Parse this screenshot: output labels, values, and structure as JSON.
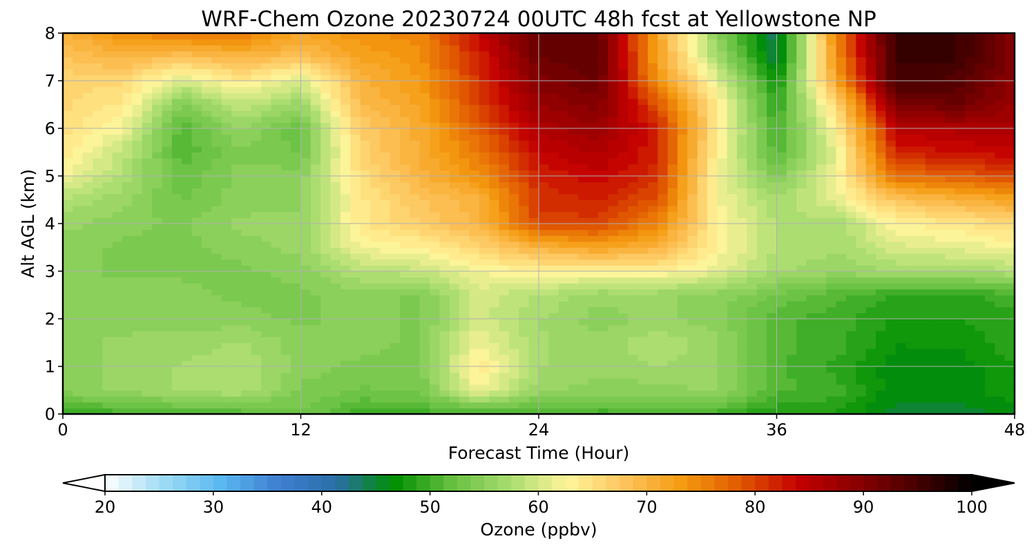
{
  "chart_data": {
    "type": "heatmap",
    "title": "WRF-Chem Ozone  20230724 00UTC 48h fcst at Yellowstone NP",
    "xlabel": "Forecast Time (Hour)",
    "ylabel": "Alt AGL (km)",
    "xlim": [
      0,
      48
    ],
    "ylim": [
      0,
      8
    ],
    "xticks": [
      "0",
      "12",
      "24",
      "36",
      "48"
    ],
    "yticks": [
      "0",
      "1",
      "2",
      "3",
      "4",
      "5",
      "6",
      "7",
      "8"
    ],
    "grid": true,
    "colorbar": {
      "label": "Ozone  (ppbv)",
      "range": [
        20,
        100
      ],
      "ticks": [
        "20",
        "30",
        "40",
        "50",
        "60",
        "70",
        "80",
        "90",
        "100"
      ],
      "extend": "both",
      "colors": [
        "#ffffff",
        "#9fdcf5",
        "#5ab8f0",
        "#3f7fd1",
        "#2a6fa8",
        "#008f00",
        "#66c040",
        "#a8dc70",
        "#fff59a",
        "#fdc45c",
        "#f59a10",
        "#e05800",
        "#c40000",
        "#8a0000",
        "#4a0000",
        "#000000"
      ]
    },
    "x_hours": [
      0,
      3,
      6,
      9,
      12,
      15,
      18,
      21,
      24,
      27,
      30,
      33,
      36,
      39,
      42,
      45,
      48
    ],
    "z_km": [
      0,
      0.5,
      1,
      1.5,
      2,
      2.5,
      3,
      3.5,
      4,
      4.5,
      5,
      5.5,
      6,
      6.5,
      7,
      7.5,
      8
    ],
    "values_ppbv": [
      [
        49,
        50,
        51,
        51,
        53,
        50,
        50,
        50,
        50,
        50,
        50,
        50,
        48,
        48,
        45,
        45,
        46
      ],
      [
        55,
        56,
        57,
        58,
        54,
        53,
        53,
        62,
        56,
        55,
        55,
        56,
        51,
        50,
        46,
        46,
        48
      ],
      [
        55,
        56,
        57,
        58,
        55,
        54,
        54,
        64,
        57,
        56,
        57,
        56,
        51,
        49,
        46,
        46,
        48
      ],
      [
        55,
        56,
        56,
        57,
        55,
        55,
        54,
        62,
        57,
        56,
        58,
        56,
        51,
        50,
        47,
        47,
        49
      ],
      [
        55,
        55,
        55,
        55,
        54,
        55,
        54,
        60,
        57,
        55,
        56,
        55,
        51,
        50,
        48,
        48,
        49
      ],
      [
        55,
        55,
        55,
        54,
        54,
        55,
        54,
        60,
        58,
        56,
        56,
        55,
        53,
        51,
        49,
        49,
        50
      ],
      [
        55,
        54,
        54,
        54,
        55,
        58,
        59,
        62,
        63,
        63,
        63,
        61,
        57,
        56,
        57,
        57,
        58
      ],
      [
        55,
        54,
        54,
        55,
        56,
        62,
        63,
        66,
        70,
        72,
        70,
        63,
        58,
        57,
        60,
        61,
        62
      ],
      [
        56,
        55,
        54,
        56,
        56,
        64,
        67,
        70,
        80,
        80,
        75,
        63,
        58,
        57,
        63,
        64,
        66
      ],
      [
        58,
        56,
        53,
        55,
        55,
        64,
        68,
        70,
        81,
        82,
        79,
        62,
        57,
        61,
        68,
        70,
        72
      ],
      [
        62,
        58,
        52,
        55,
        55,
        65,
        70,
        74,
        82,
        84,
        81,
        62,
        54,
        62,
        77,
        78,
        80
      ],
      [
        64,
        59,
        51,
        54,
        53,
        66,
        71,
        76,
        84,
        86,
        82,
        63,
        51,
        61,
        82,
        83,
        84
      ],
      [
        65,
        62,
        51,
        56,
        52,
        67,
        71,
        78,
        86,
        88,
        82,
        64,
        50,
        63,
        85,
        86,
        86
      ],
      [
        66,
        64,
        54,
        59,
        56,
        69,
        72,
        80,
        88,
        90,
        79,
        64,
        49,
        66,
        90,
        92,
        88
      ],
      [
        66,
        66,
        60,
        64,
        60,
        70,
        73,
        81,
        90,
        92,
        74,
        61,
        47,
        72,
        95,
        94,
        89
      ],
      [
        68,
        70,
        68,
        70,
        68,
        72,
        74,
        82,
        92,
        93,
        72,
        57,
        44,
        74,
        96,
        96,
        90
      ],
      [
        70,
        74,
        76,
        76,
        72,
        74,
        75,
        84,
        92,
        92,
        72,
        55,
        43,
        75,
        96,
        96,
        90
      ]
    ]
  }
}
